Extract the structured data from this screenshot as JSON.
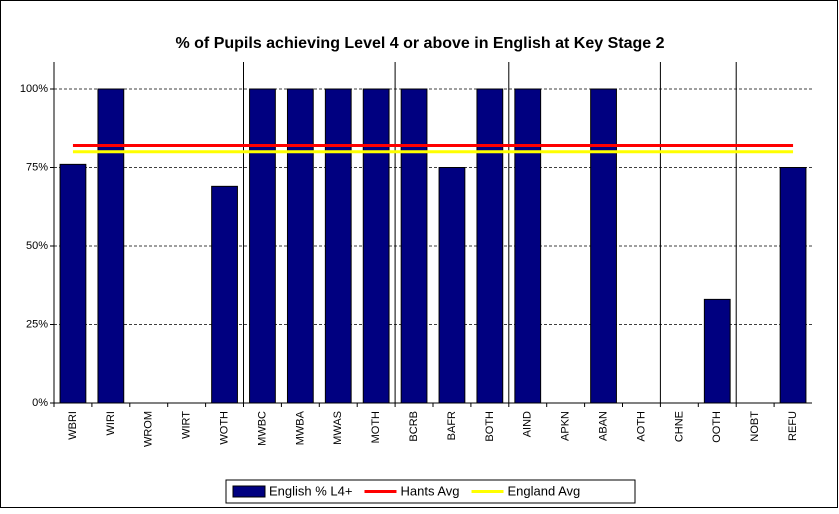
{
  "chart_data": {
    "type": "bar",
    "title": "% of Pupils achieving Level 4 or above in English at Key Stage 2",
    "categories": [
      "WBRI",
      "WIRI",
      "WROM",
      "WIRT",
      "WOTH",
      "MWBC",
      "MWBA",
      "MWAS",
      "MOTH",
      "BCRB",
      "BAFR",
      "BOTH",
      "AIND",
      "APKN",
      "ABAN",
      "AOTH",
      "CHNE",
      "OOTH",
      "NOBT",
      "REFU"
    ],
    "series": [
      {
        "name": "English % L4+",
        "type": "bar",
        "color": "#000080",
        "values": [
          76,
          100,
          null,
          null,
          69,
          100,
          100,
          100,
          100,
          100,
          75,
          100,
          100,
          null,
          100,
          null,
          null,
          33,
          null,
          75
        ]
      },
      {
        "name": "Hants Avg",
        "type": "line",
        "color": "#ff0000",
        "values": [
          82,
          82,
          82,
          82,
          82,
          82,
          82,
          82,
          82,
          82,
          82,
          82,
          82,
          82,
          82,
          82,
          82,
          82,
          82,
          82
        ]
      },
      {
        "name": "England Avg",
        "type": "line",
        "color": "#ffff00",
        "values": [
          80,
          80,
          80,
          80,
          80,
          80,
          80,
          80,
          80,
          80,
          80,
          80,
          80,
          80,
          80,
          80,
          80,
          80,
          80,
          80
        ]
      }
    ],
    "ylim": [
      0,
      100
    ],
    "yticks": [
      {
        "value": 0,
        "label": "0%"
      },
      {
        "value": 25,
        "label": "25%"
      },
      {
        "value": 50,
        "label": "50%"
      },
      {
        "value": 75,
        "label": "75%"
      },
      {
        "value": 100,
        "label": "100%"
      }
    ],
    "grid": true,
    "legend": "bottom"
  }
}
